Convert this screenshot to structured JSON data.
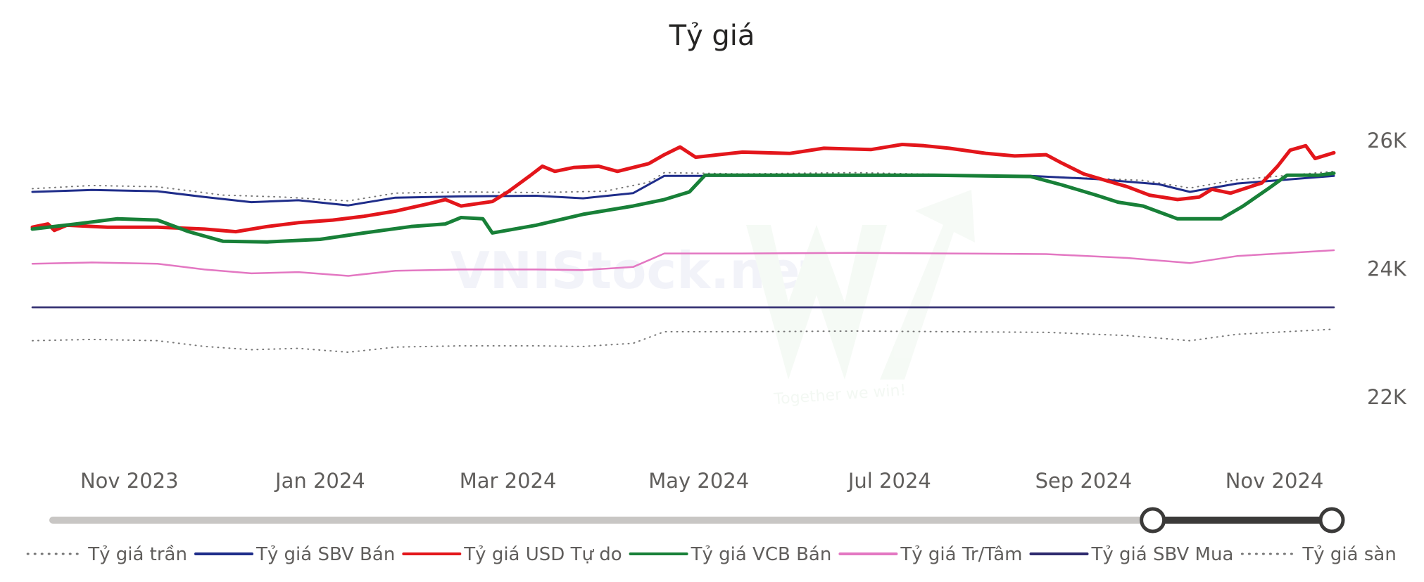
{
  "chart_data": {
    "type": "line",
    "title": "Tỷ giá",
    "xlabel": "",
    "ylabel": "",
    "x_range": [
      "2023-10-01",
      "2024-11-20"
    ],
    "ylim": [
      21000,
      26700
    ],
    "y_ticks": [
      {
        "value": 22000,
        "label": "22K"
      },
      {
        "value": 24000,
        "label": "24K"
      },
      {
        "value": 26000,
        "label": "26K"
      }
    ],
    "x_ticks": [
      {
        "date": "2023-11-01",
        "label": "Nov 2023"
      },
      {
        "date": "2024-01-01",
        "label": "Jan 2024"
      },
      {
        "date": "2024-03-01",
        "label": "Mar 2024"
      },
      {
        "date": "2024-05-01",
        "label": "May 2024"
      },
      {
        "date": "2024-07-01",
        "label": "Jul 2024"
      },
      {
        "date": "2024-09-01",
        "label": "Sep 2024"
      },
      {
        "date": "2024-11-01",
        "label": "Nov 2024"
      }
    ],
    "grid": false,
    "legend_position": "bottom",
    "series": [
      {
        "name": "Tỷ giá trần",
        "color": "#777777",
        "style": "dotted",
        "width": 2,
        "points": [
          [
            "2023-10-01",
            25250
          ],
          [
            "2023-10-20",
            25300
          ],
          [
            "2023-11-10",
            25280
          ],
          [
            "2023-12-01",
            25150
          ],
          [
            "2023-12-20",
            25120
          ],
          [
            "2024-01-10",
            25060
          ],
          [
            "2024-01-25",
            25180
          ],
          [
            "2024-02-15",
            25200
          ],
          [
            "2024-03-10",
            25190
          ],
          [
            "2024-04-01",
            25210
          ],
          [
            "2024-04-15",
            25350
          ],
          [
            "2024-04-20",
            25500
          ],
          [
            "2024-05-15",
            25480
          ],
          [
            "2024-06-20",
            25500
          ],
          [
            "2024-07-20",
            25470
          ],
          [
            "2024-08-20",
            25440
          ],
          [
            "2024-09-20",
            25380
          ],
          [
            "2024-10-05",
            25260
          ],
          [
            "2024-10-20",
            25390
          ],
          [
            "2024-11-20",
            25520
          ]
        ]
      },
      {
        "name": "Tỷ giá SBV Bán",
        "color": "#1f2d8a",
        "style": "solid",
        "width": 3,
        "points": [
          [
            "2023-10-01",
            25200
          ],
          [
            "2023-10-20",
            25230
          ],
          [
            "2023-11-10",
            25210
          ],
          [
            "2023-11-25",
            25120
          ],
          [
            "2023-12-10",
            25040
          ],
          [
            "2023-12-25",
            25070
          ],
          [
            "2024-01-10",
            24990
          ],
          [
            "2024-01-25",
            25110
          ],
          [
            "2024-02-15",
            25130
          ],
          [
            "2024-03-10",
            25140
          ],
          [
            "2024-03-25",
            25100
          ],
          [
            "2024-04-10",
            25180
          ],
          [
            "2024-04-20",
            25450
          ],
          [
            "2024-05-15",
            25450
          ],
          [
            "2024-07-15",
            25450
          ],
          [
            "2024-08-15",
            25450
          ],
          [
            "2024-09-05",
            25400
          ],
          [
            "2024-09-25",
            25320
          ],
          [
            "2024-10-05",
            25200
          ],
          [
            "2024-10-20",
            25330
          ],
          [
            "2024-11-20",
            25450
          ]
        ]
      },
      {
        "name": "Tỷ giá USD Tự do",
        "color": "#e3161b",
        "style": "solid",
        "width": 5,
        "points": [
          [
            "2023-10-01",
            24650
          ],
          [
            "2023-10-06",
            24700
          ],
          [
            "2023-10-08",
            24600
          ],
          [
            "2023-10-12",
            24680
          ],
          [
            "2023-10-25",
            24650
          ],
          [
            "2023-11-10",
            24650
          ],
          [
            "2023-11-25",
            24620
          ],
          [
            "2023-12-05",
            24580
          ],
          [
            "2023-12-15",
            24660
          ],
          [
            "2023-12-25",
            24720
          ],
          [
            "2024-01-05",
            24760
          ],
          [
            "2024-01-15",
            24820
          ],
          [
            "2024-01-25",
            24900
          ],
          [
            "2024-02-05",
            25020
          ],
          [
            "2024-02-10",
            25080
          ],
          [
            "2024-02-15",
            24980
          ],
          [
            "2024-02-25",
            25050
          ],
          [
            "2024-03-01",
            25200
          ],
          [
            "2024-03-08",
            25450
          ],
          [
            "2024-03-12",
            25600
          ],
          [
            "2024-03-16",
            25520
          ],
          [
            "2024-03-22",
            25580
          ],
          [
            "2024-03-30",
            25600
          ],
          [
            "2024-04-05",
            25520
          ],
          [
            "2024-04-15",
            25640
          ],
          [
            "2024-04-20",
            25780
          ],
          [
            "2024-04-25",
            25900
          ],
          [
            "2024-04-30",
            25740
          ],
          [
            "2024-05-15",
            25820
          ],
          [
            "2024-05-30",
            25800
          ],
          [
            "2024-06-10",
            25880
          ],
          [
            "2024-06-25",
            25860
          ],
          [
            "2024-07-05",
            25940
          ],
          [
            "2024-07-12",
            25920
          ],
          [
            "2024-07-20",
            25880
          ],
          [
            "2024-08-01",
            25800
          ],
          [
            "2024-08-10",
            25760
          ],
          [
            "2024-08-20",
            25780
          ],
          [
            "2024-08-25",
            25650
          ],
          [
            "2024-09-01",
            25480
          ],
          [
            "2024-09-08",
            25380
          ],
          [
            "2024-09-15",
            25280
          ],
          [
            "2024-09-22",
            25150
          ],
          [
            "2024-10-01",
            25080
          ],
          [
            "2024-10-08",
            25120
          ],
          [
            "2024-10-12",
            25240
          ],
          [
            "2024-10-18",
            25180
          ],
          [
            "2024-10-28",
            25340
          ],
          [
            "2024-11-02",
            25600
          ],
          [
            "2024-11-06",
            25850
          ],
          [
            "2024-11-11",
            25920
          ],
          [
            "2024-11-14",
            25720
          ],
          [
            "2024-11-20",
            25810
          ]
        ]
      },
      {
        "name": "Tỷ giá VCB Bán",
        "color": "#188038",
        "style": "solid",
        "width": 5,
        "points": [
          [
            "2023-10-01",
            24620
          ],
          [
            "2023-10-15",
            24700
          ],
          [
            "2023-10-28",
            24780
          ],
          [
            "2023-11-10",
            24760
          ],
          [
            "2023-11-20",
            24580
          ],
          [
            "2023-12-01",
            24430
          ],
          [
            "2023-12-15",
            24420
          ],
          [
            "2024-01-01",
            24460
          ],
          [
            "2024-01-15",
            24560
          ],
          [
            "2024-01-30",
            24660
          ],
          [
            "2024-02-10",
            24700
          ],
          [
            "2024-02-15",
            24800
          ],
          [
            "2024-02-22",
            24780
          ],
          [
            "2024-02-25",
            24560
          ],
          [
            "2024-03-10",
            24680
          ],
          [
            "2024-03-25",
            24850
          ],
          [
            "2024-04-10",
            24980
          ],
          [
            "2024-04-20",
            25080
          ],
          [
            "2024-04-28",
            25200
          ],
          [
            "2024-05-03",
            25460
          ],
          [
            "2024-05-15",
            25460
          ],
          [
            "2024-06-15",
            25460
          ],
          [
            "2024-07-15",
            25460
          ],
          [
            "2024-08-15",
            25440
          ],
          [
            "2024-08-25",
            25310
          ],
          [
            "2024-09-05",
            25150
          ],
          [
            "2024-09-12",
            25040
          ],
          [
            "2024-09-20",
            24980
          ],
          [
            "2024-10-01",
            24780
          ],
          [
            "2024-10-15",
            24780
          ],
          [
            "2024-10-22",
            24980
          ],
          [
            "2024-10-30",
            25250
          ],
          [
            "2024-11-05",
            25460
          ],
          [
            "2024-11-15",
            25460
          ],
          [
            "2024-11-20",
            25490
          ]
        ]
      },
      {
        "name": "Tỷ giá Tr/Tâm",
        "color": "#e377c2",
        "style": "solid",
        "width": 2.5,
        "points": [
          [
            "2023-10-01",
            24080
          ],
          [
            "2023-10-20",
            24100
          ],
          [
            "2023-11-10",
            24080
          ],
          [
            "2023-11-25",
            23990
          ],
          [
            "2023-12-10",
            23930
          ],
          [
            "2023-12-25",
            23950
          ],
          [
            "2024-01-10",
            23890
          ],
          [
            "2024-01-25",
            23970
          ],
          [
            "2024-02-15",
            23990
          ],
          [
            "2024-03-10",
            23990
          ],
          [
            "2024-03-25",
            23980
          ],
          [
            "2024-04-10",
            24030
          ],
          [
            "2024-04-20",
            24240
          ],
          [
            "2024-05-15",
            24240
          ],
          [
            "2024-06-20",
            24250
          ],
          [
            "2024-07-20",
            24240
          ],
          [
            "2024-08-20",
            24230
          ],
          [
            "2024-09-15",
            24170
          ],
          [
            "2024-10-05",
            24090
          ],
          [
            "2024-10-20",
            24200
          ],
          [
            "2024-11-20",
            24290
          ]
        ]
      },
      {
        "name": "Tỷ giá SBV Mua",
        "color": "#2e2a6e",
        "style": "solid",
        "width": 2.5,
        "points": [
          [
            "2023-10-01",
            23400
          ],
          [
            "2024-11-20",
            23400
          ]
        ]
      },
      {
        "name": "Tỷ giá sàn",
        "color": "#777777",
        "style": "dotted",
        "width": 2,
        "points": [
          [
            "2023-10-01",
            22880
          ],
          [
            "2023-10-20",
            22900
          ],
          [
            "2023-11-10",
            22880
          ],
          [
            "2023-11-25",
            22790
          ],
          [
            "2023-12-10",
            22740
          ],
          [
            "2023-12-25",
            22760
          ],
          [
            "2024-01-10",
            22700
          ],
          [
            "2024-01-25",
            22780
          ],
          [
            "2024-02-15",
            22800
          ],
          [
            "2024-03-10",
            22800
          ],
          [
            "2024-03-25",
            22790
          ],
          [
            "2024-04-10",
            22840
          ],
          [
            "2024-04-20",
            23020
          ],
          [
            "2024-05-15",
            23020
          ],
          [
            "2024-06-20",
            23030
          ],
          [
            "2024-07-20",
            23020
          ],
          [
            "2024-08-20",
            23010
          ],
          [
            "2024-09-15",
            22960
          ],
          [
            "2024-10-05",
            22880
          ],
          [
            "2024-10-20",
            22980
          ],
          [
            "2024-11-20",
            23060
          ]
        ]
      }
    ]
  },
  "watermark": {
    "text": "VNIStock.net",
    "tagline": "Together we win!"
  },
  "slider": {
    "start_fraction": 0.86,
    "end_fraction": 1.0
  }
}
